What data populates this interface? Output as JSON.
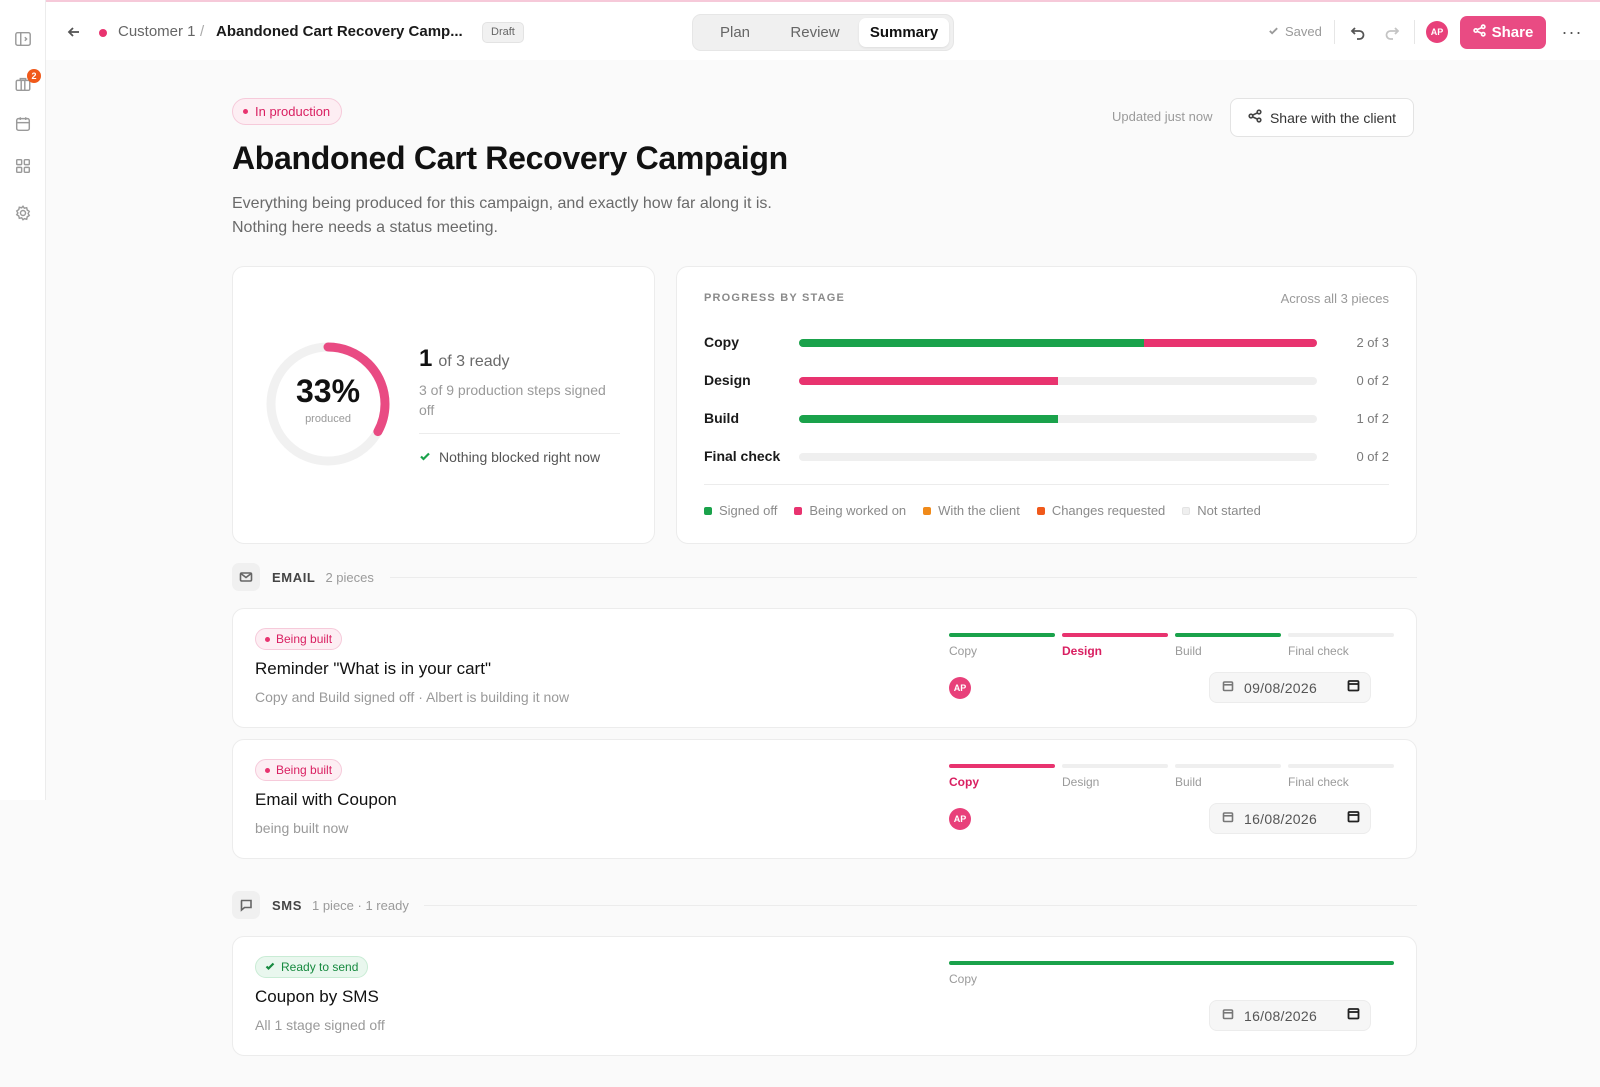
{
  "colors": {
    "signed_off": "#1aa24b",
    "being_worked_on": "#e8336f",
    "with_client": "#f08a1a",
    "changes_requested": "#f0591a",
    "not_started": "#efefef",
    "accent": "#e94b83"
  },
  "sidebar": {
    "items": [
      {
        "icon": "sidebar-toggle-icon"
      },
      {
        "icon": "briefcase-icon",
        "badge": "2"
      },
      {
        "icon": "calendar-icon"
      },
      {
        "icon": "grid-icon"
      },
      {
        "icon": "gear-icon"
      }
    ]
  },
  "topbar": {
    "breadcrumb_customer": "Customer 1",
    "breadcrumb_sep": "/",
    "breadcrumb_title": "Abandoned Cart Recovery Camp...",
    "draft_label": "Draft",
    "tabs": [
      {
        "label": "Plan"
      },
      {
        "label": "Review"
      },
      {
        "label": "Summary",
        "active": true
      }
    ],
    "saved_label": "Saved",
    "avatar_initials": "AP",
    "share_label": "Share",
    "more_label": "···"
  },
  "header": {
    "status": "In production",
    "updated": "Updated just now",
    "share_client_label": "Share with the client",
    "title": "Abandoned Cart Recovery Campaign",
    "desc_line1": "Everything being produced for this campaign, and exactly how far along it is.",
    "desc_line2": "Nothing here needs a status meeting."
  },
  "summary": {
    "percent": "33%",
    "percent_value": 0.33,
    "percent_label": "produced",
    "ready_count": "1",
    "ready_of": "of 3 ready",
    "steps_text": "3 of 9 production steps signed off",
    "nothing_blocked": "Nothing blocked right now"
  },
  "progress": {
    "heading": "PROGRESS BY STAGE",
    "across": "Across all 3 pieces",
    "stages": [
      {
        "name": "Copy",
        "count": "2 of 3",
        "signed_off": 2,
        "being_worked_on": 1,
        "total": 3
      },
      {
        "name": "Design",
        "count": "0 of 2",
        "signed_off": 0,
        "being_worked_on": 1,
        "total": 2
      },
      {
        "name": "Build",
        "count": "1 of 2",
        "signed_off": 1,
        "being_worked_on": 0,
        "total": 2
      },
      {
        "name": "Final check",
        "count": "0 of 2",
        "signed_off": 0,
        "being_worked_on": 0,
        "total": 2
      }
    ],
    "legend": [
      {
        "label": "Signed off",
        "color": "#1aa24b"
      },
      {
        "label": "Being worked on",
        "color": "#e8336f"
      },
      {
        "label": "With the client",
        "color": "#f08a1a"
      },
      {
        "label": "Changes requested",
        "color": "#f0591a"
      },
      {
        "label": "Not started",
        "color": "#efefef"
      }
    ]
  },
  "sections": {
    "email": {
      "name": "EMAIL",
      "count": "2 pieces"
    },
    "sms": {
      "name": "SMS",
      "count": "1 piece · 1 ready"
    }
  },
  "pieces": [
    {
      "badge": "Being built",
      "title": "Reminder \"What is in your cart\"",
      "sub": "Copy and Build signed off · Albert is building it now",
      "stages": [
        {
          "label": "Copy",
          "state": "signed_off"
        },
        {
          "label": "Design",
          "state": "being_worked_on",
          "current": true
        },
        {
          "label": "Build",
          "state": "signed_off"
        },
        {
          "label": "Final check",
          "state": "not_started"
        }
      ],
      "avatar": "AP",
      "date": "09/08/2026"
    },
    {
      "badge": "Being built",
      "title": "Email with Coupon",
      "sub": "being built now",
      "stages": [
        {
          "label": "Copy",
          "state": "being_worked_on",
          "current": true
        },
        {
          "label": "Design",
          "state": "not_started"
        },
        {
          "label": "Build",
          "state": "not_started"
        },
        {
          "label": "Final check",
          "state": "not_started"
        }
      ],
      "avatar": "AP",
      "date": "16/08/2026"
    },
    {
      "badge": "Ready to send",
      "title": "Coupon by SMS",
      "sub": "All 1 stage signed off",
      "stages": [
        {
          "label": "Copy",
          "state": "signed_off"
        }
      ],
      "date": "16/08/2026"
    }
  ]
}
